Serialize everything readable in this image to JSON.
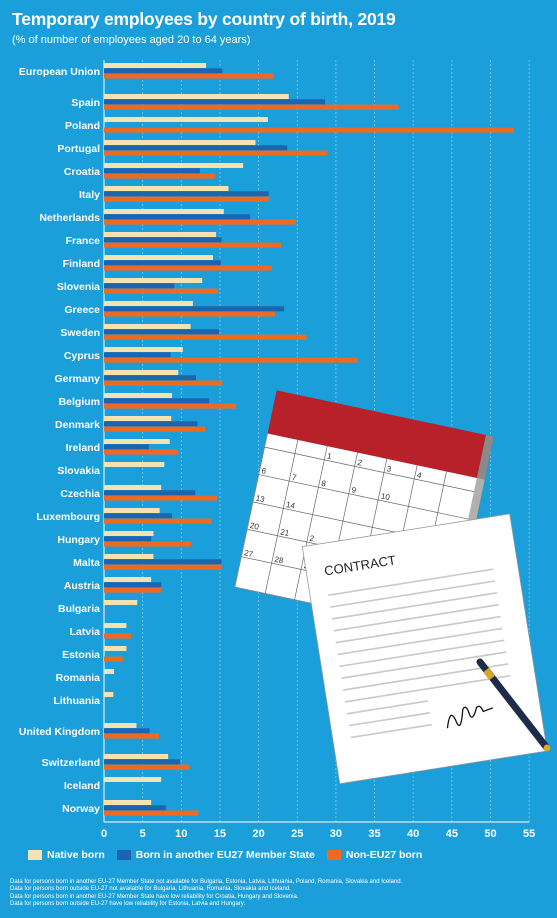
{
  "title": "Temporary employees by country of birth, 2019",
  "subtitle": "(% of number of employees aged 20 to 64 years)",
  "colors": {
    "background": "#1a9fdb",
    "native": "#f5e2b3",
    "eu27": "#1c63b0",
    "noneu": "#ef6a21"
  },
  "legend": {
    "native": "Native born",
    "eu27": "Born in another EU27 Member State",
    "noneu": "Non-EU27 born"
  },
  "notes": [
    "Data for persons born in another EU-27 Member State not available for Bulgaria, Estonia, Latvia, Lithuania, Poland, Romania, Slovakia and Iceland.",
    "Data for persons born outside EU-27 not available for Bulgaria, Lithuania, Romania, Slovakia and Iceland.",
    "Data for persons born in another EU-27 Member State have low reliability for Croatia, Hungary and Slovenia.",
    "Data for persons born outside EU-27 have low reliability for Estonia, Latvia and Hungary."
  ],
  "illustration": {
    "contract_title": "CONTRACT",
    "calendar_days": [
      "1",
      "2",
      "3",
      "4",
      "6",
      "7",
      "8",
      "9",
      "10",
      "13",
      "14",
      "20",
      "21",
      "2",
      "27",
      "28",
      "29"
    ]
  },
  "chart_data": {
    "type": "bar",
    "orientation": "horizontal",
    "xlim": [
      0,
      55
    ],
    "xticks": [
      0,
      5,
      10,
      15,
      20,
      25,
      30,
      35,
      40,
      45,
      50,
      55
    ],
    "grid": "vertical dashed",
    "legend_position": "bottom",
    "categories": [
      "European Union",
      "Spain",
      "Poland",
      "Portugal",
      "Croatia",
      "Italy",
      "Netherlands",
      "France",
      "Finland",
      "Slovenia",
      "Greece",
      "Sweden",
      "Cyprus",
      "Germany",
      "Belgium",
      "Denmark",
      "Ireland",
      "Slovakia",
      "Czechia",
      "Luxembourg",
      "Hungary",
      "Malta",
      "Austria",
      "Bulgaria",
      "Latvia",
      "Estonia",
      "Romania",
      "Lithuania",
      "United Kingdom",
      "Switzerland",
      "Iceland",
      "Norway"
    ],
    "series": [
      {
        "name": "Native born",
        "values": [
          13.2,
          23.9,
          21.2,
          19.6,
          18.0,
          16.1,
          15.5,
          14.5,
          14.1,
          12.7,
          11.5,
          11.2,
          10.2,
          9.6,
          8.8,
          8.7,
          8.5,
          7.8,
          7.4,
          7.2,
          6.4,
          6.4,
          6.1,
          4.3,
          2.9,
          2.9,
          1.3,
          1.2,
          4.2,
          8.3,
          7.4,
          6.1
        ]
      },
      {
        "name": "Born in another EU27 Member State",
        "values": [
          15.3,
          28.6,
          null,
          23.7,
          12.4,
          21.3,
          18.9,
          15.2,
          15.1,
          9.1,
          23.3,
          14.9,
          8.6,
          11.9,
          13.6,
          12.1,
          5.8,
          null,
          11.8,
          8.8,
          6.1,
          15.2,
          7.4,
          null,
          null,
          null,
          null,
          null,
          5.9,
          9.8,
          null,
          8.0
        ]
      },
      {
        "name": "Non-EU27 born",
        "values": [
          21.9,
          38.1,
          53.0,
          28.9,
          14.4,
          21.3,
          24.8,
          22.9,
          21.7,
          14.7,
          22.1,
          26.2,
          32.8,
          15.3,
          17.1,
          13.1,
          9.6,
          null,
          14.6,
          13.9,
          11.3,
          15.2,
          7.4,
          null,
          3.5,
          2.5,
          null,
          null,
          7.1,
          11.1,
          null,
          12.2
        ]
      }
    ]
  }
}
